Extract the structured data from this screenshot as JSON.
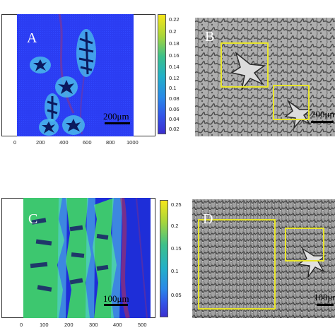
{
  "top_left": {
    "letter": "A",
    "scale_label": "200μm",
    "x_ticks": [
      "0",
      "200",
      "400",
      "600",
      "800",
      "1000"
    ],
    "colorbar_ticks": [
      "0.22",
      "0.2",
      "0.18",
      "0.16",
      "0.14",
      "0.12",
      "0.1",
      "0.08",
      "0.06",
      "0.04",
      "0.02"
    ]
  },
  "top_right": {
    "letter": "B",
    "scale_label": "200μm"
  },
  "bottom_left": {
    "letter": "C",
    "scale_label": "100μm",
    "x_ticks": [
      "0",
      "100",
      "200",
      "300",
      "400",
      "500"
    ],
    "colorbar_ticks": [
      "0.25",
      "0.2",
      "0.15",
      "0.1",
      "0.05"
    ]
  },
  "bottom_right": {
    "letter": "D",
    "scale_label": "100μm"
  },
  "colors": {
    "sim_background": "#2a3cf0",
    "dendrite_cyan": "#57d0e8",
    "dendrite_green": "#3fd06a",
    "selection_box": "#e8e52a"
  }
}
